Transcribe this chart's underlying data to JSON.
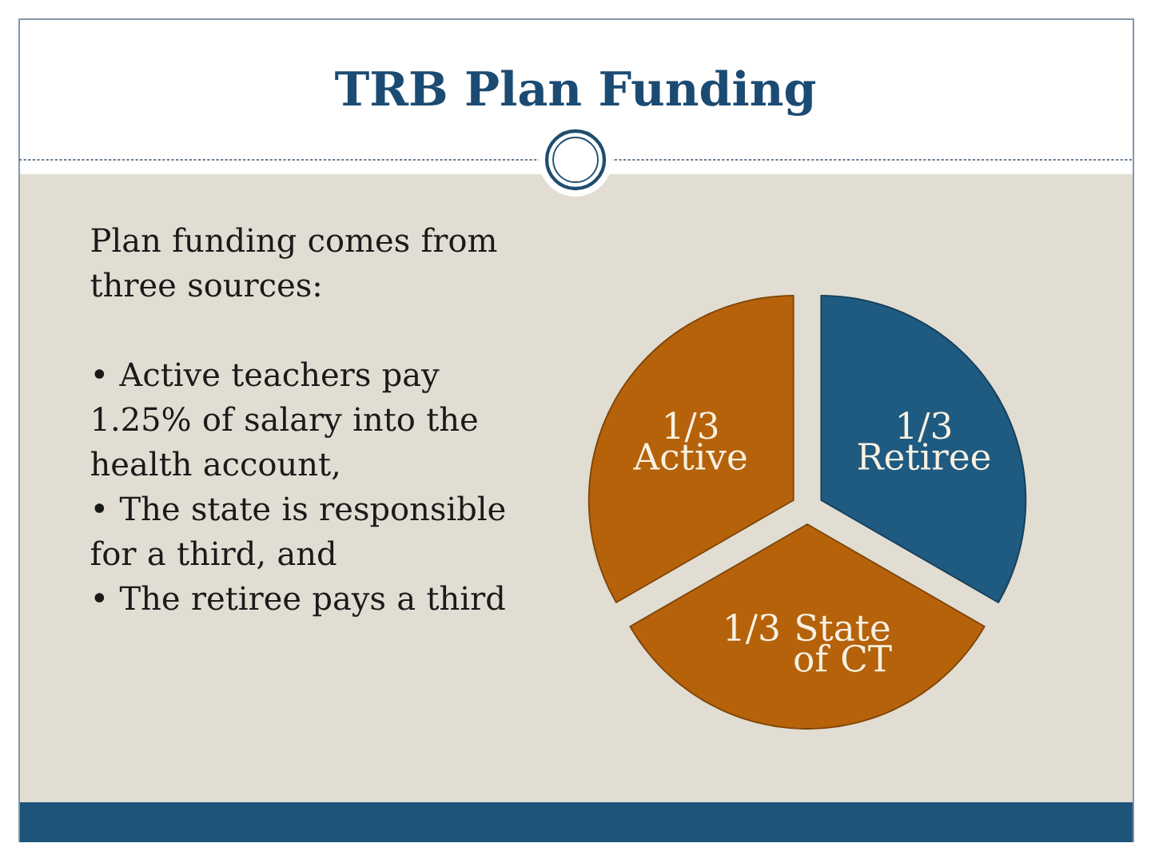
{
  "chart_data": {
    "type": "pie",
    "title": "TRB Plan Funding",
    "categories": [
      "Retiree",
      "State of CT",
      "Active"
    ],
    "values": [
      0.3333,
      0.3333,
      0.3333
    ],
    "value_labels": [
      "1/3",
      "1/3",
      "1/3"
    ],
    "colors": [
      "#1f5a80",
      "#b5620b",
      "#b5620b"
    ],
    "annotations": [
      "Plan funding comes from three sources:",
      "• Active teachers pay 1.25% of salary into the health account,",
      "• The state is responsible for a third, and",
      "• The retiree pays a third"
    ]
  }
}
